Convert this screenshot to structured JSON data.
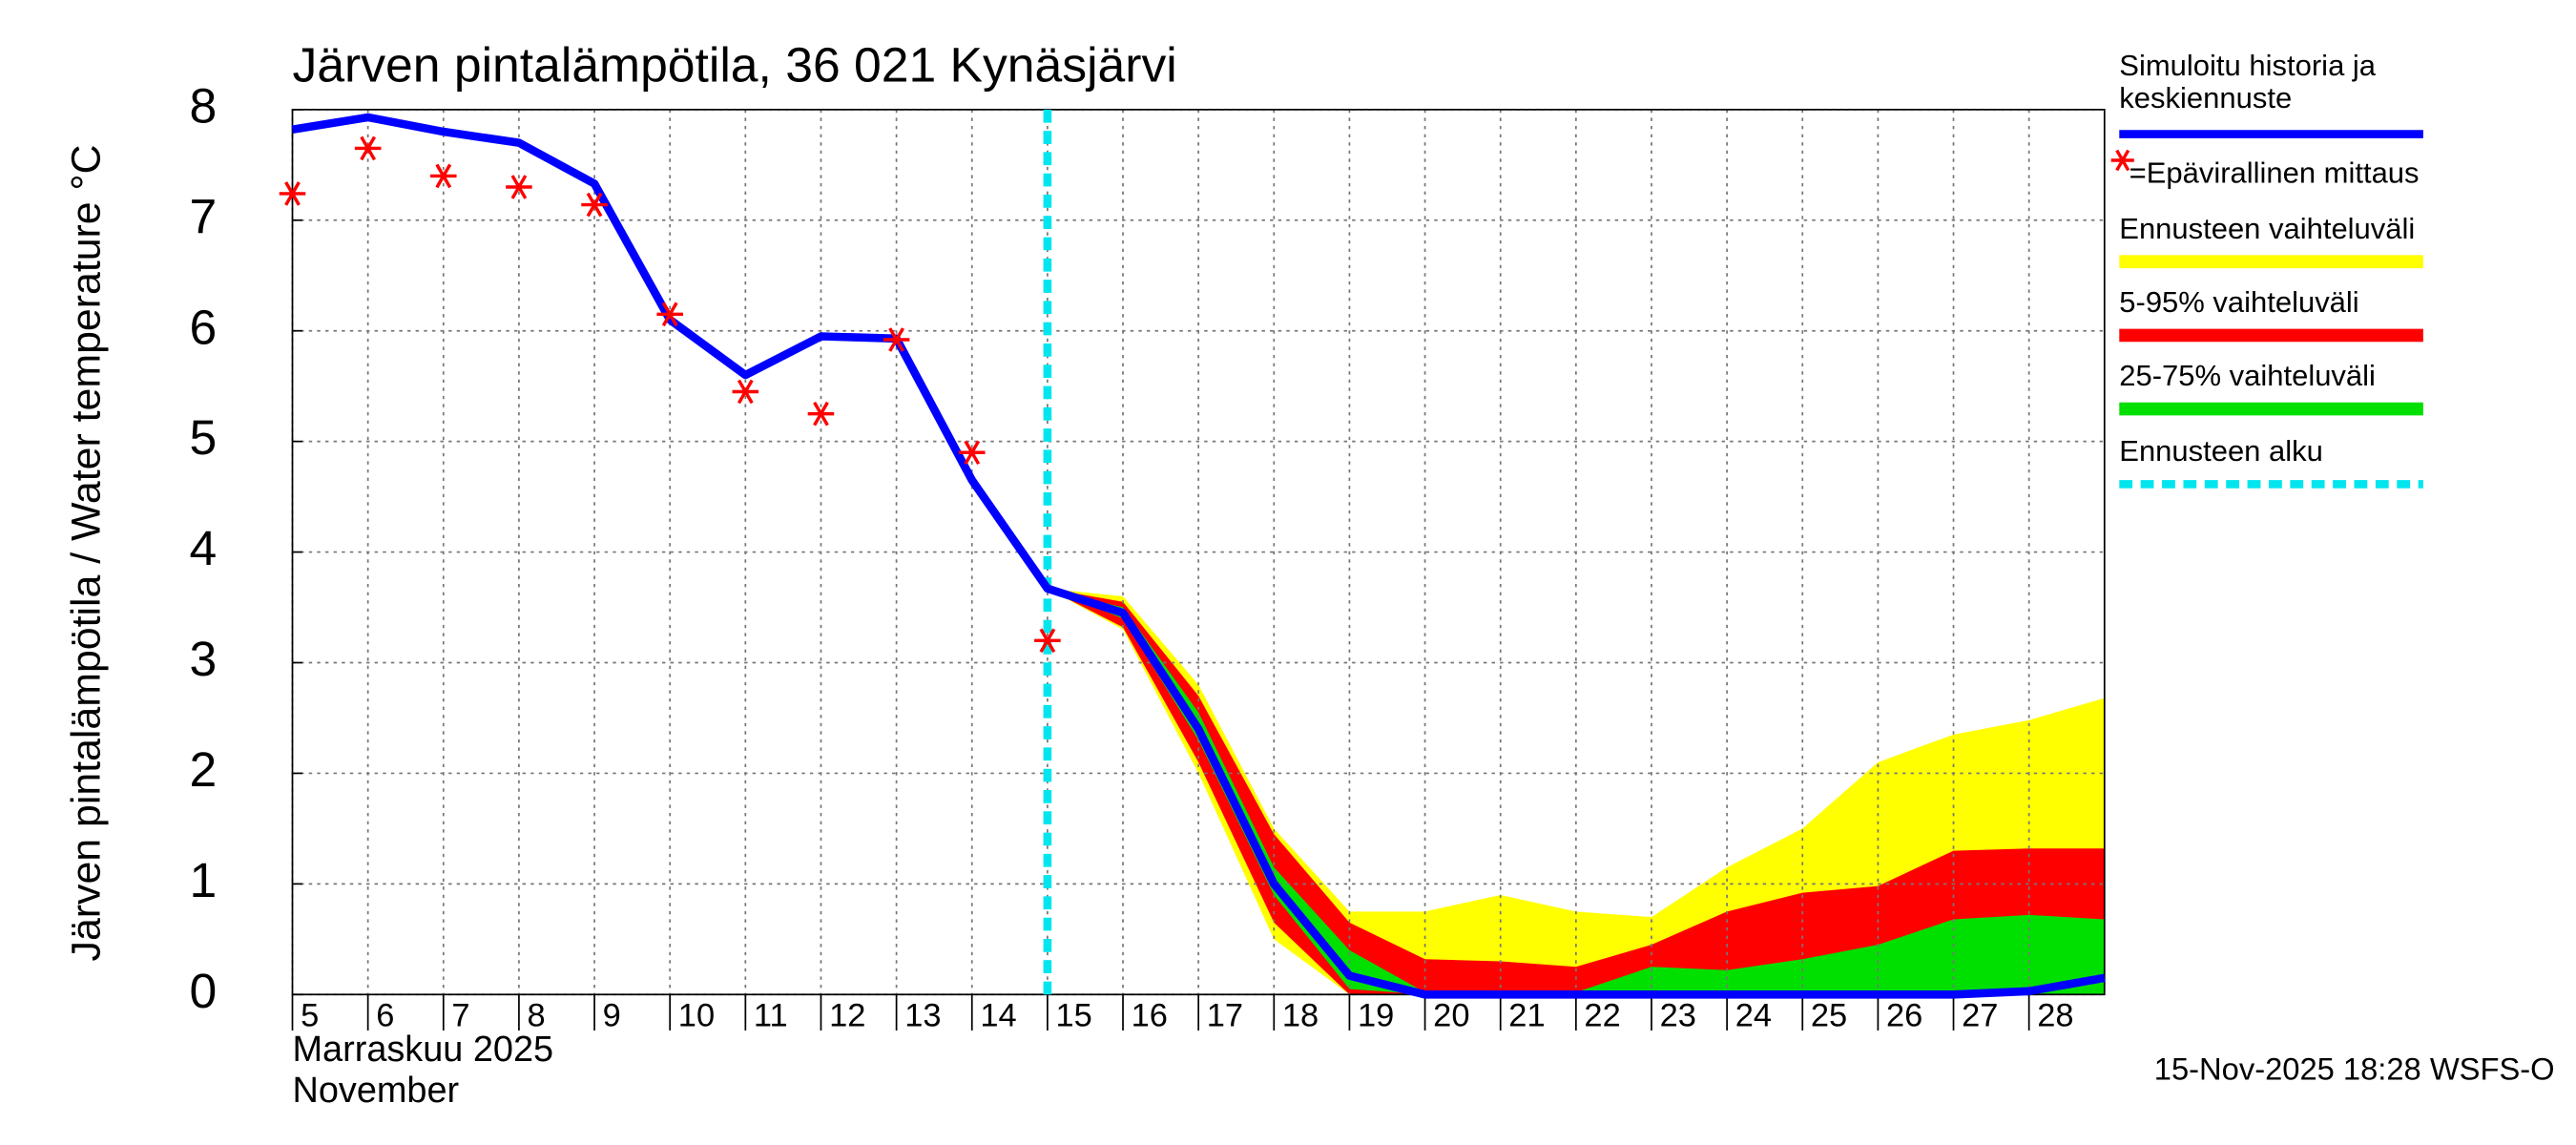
{
  "chart_data": {
    "type": "line",
    "title": "Järven pintalämpötila, 36 021 Kynäsjärvi",
    "ylabel": "Järven pintalämpötila / Water temperature °C",
    "xlabel_fi": "Marraskuu 2025",
    "xlabel_en": "November",
    "timestamp": "15-Nov-2025 18:28 WSFS-O",
    "xlim": [
      5,
      29
    ],
    "xticks": [
      5,
      6,
      7,
      8,
      9,
      10,
      11,
      12,
      13,
      14,
      15,
      16,
      17,
      18,
      19,
      20,
      21,
      22,
      23,
      24,
      25,
      26,
      27,
      28
    ],
    "ylim": [
      0,
      8
    ],
    "yticks": [
      0,
      1,
      2,
      3,
      4,
      5,
      6,
      7,
      8
    ],
    "grid": true,
    "bands": [
      {
        "name": "Ennusteen vaihteluväli",
        "color": "#ffff00",
        "x": [
          15,
          16,
          17,
          18,
          19,
          20,
          21,
          22,
          23,
          24,
          25,
          26,
          27,
          28,
          29
        ],
        "upper": [
          3.67,
          3.6,
          2.8,
          1.5,
          0.75,
          0.75,
          0.9,
          0.75,
          0.7,
          1.15,
          1.5,
          2.1,
          2.35,
          2.48,
          2.68
        ],
        "lower": [
          3.67,
          3.3,
          2.0,
          0.5,
          0,
          0,
          0,
          0,
          0,
          0,
          0,
          0,
          0,
          0,
          0
        ]
      },
      {
        "name": "5-95% vaihteluväli",
        "color": "#ff0000",
        "x": [
          15,
          16,
          17,
          18,
          19,
          20,
          21,
          22,
          23,
          24,
          25,
          26,
          27,
          28,
          29
        ],
        "upper": [
          3.67,
          3.55,
          2.7,
          1.45,
          0.65,
          0.32,
          0.3,
          0.25,
          0.45,
          0.75,
          0.92,
          0.98,
          1.3,
          1.32,
          1.32
        ],
        "lower": [
          3.67,
          3.32,
          2.1,
          0.65,
          0,
          0,
          0,
          0,
          0,
          0,
          0,
          0,
          0,
          0,
          0
        ]
      },
      {
        "name": "25-75% vaihteluväli",
        "color": "#00e000",
        "x": [
          15,
          16,
          17,
          18,
          19,
          20,
          21,
          22,
          23,
          24,
          25,
          26,
          27,
          28,
          29
        ],
        "upper": [
          3.67,
          3.5,
          2.55,
          1.15,
          0.4,
          0.02,
          0.02,
          0.02,
          0.25,
          0.22,
          0.32,
          0.45,
          0.68,
          0.72,
          0.68
        ],
        "lower": [
          3.67,
          3.4,
          2.3,
          0.9,
          0.05,
          0,
          0,
          0,
          0,
          0,
          0,
          0,
          0,
          0,
          0
        ]
      }
    ],
    "series": [
      {
        "name": "Simuloitu historia ja keskiennuste",
        "color": "#0000ff",
        "x": [
          5,
          6,
          7,
          8,
          9,
          10,
          11,
          12,
          13,
          14,
          15,
          16,
          17,
          18,
          19,
          20,
          21,
          22,
          23,
          24,
          25,
          26,
          27,
          28,
          29
        ],
        "values": [
          7.82,
          7.93,
          7.8,
          7.7,
          7.33,
          6.1,
          5.6,
          5.95,
          5.93,
          4.65,
          3.67,
          3.45,
          2.4,
          1.0,
          0.17,
          0,
          0,
          0,
          0,
          0,
          0,
          0,
          0,
          0.03,
          0.15
        ]
      }
    ],
    "measurements": {
      "name": "=Epävirallinen mittaus",
      "color": "#ff0000",
      "x": [
        5,
        6,
        7,
        8,
        9,
        10,
        11,
        12,
        13,
        14,
        15
      ],
      "values": [
        7.24,
        7.65,
        7.4,
        7.3,
        7.14,
        6.15,
        5.45,
        5.25,
        5.92,
        4.9,
        3.2
      ]
    },
    "forecast_start": {
      "name": "Ennusteen alku",
      "x": 15,
      "color": "#00e5ee"
    }
  }
}
